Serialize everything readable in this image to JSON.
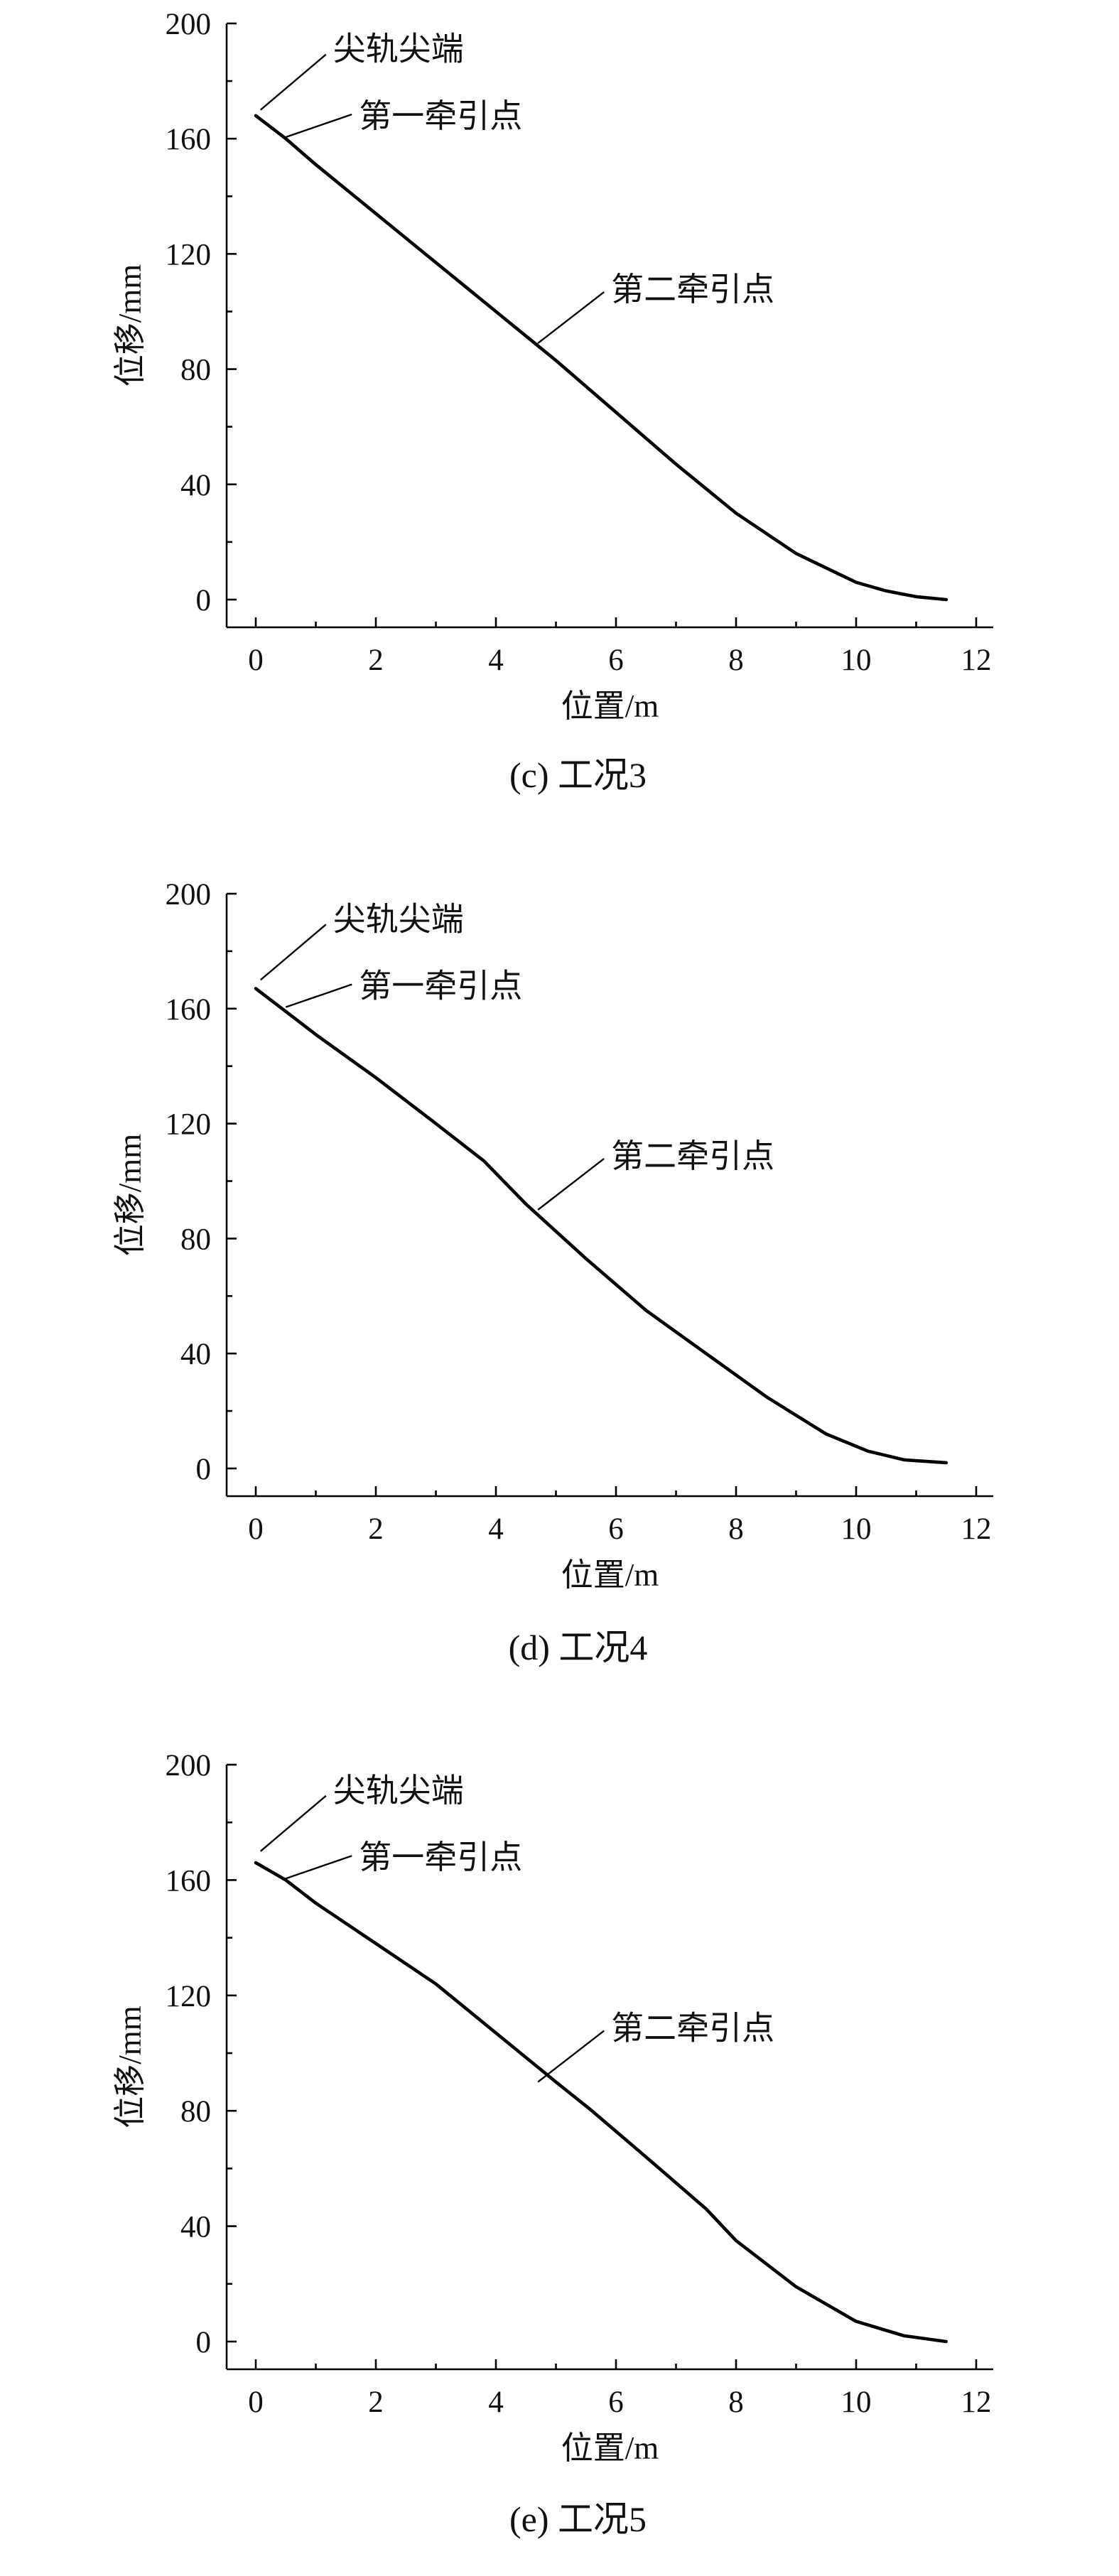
{
  "chart_data": [
    {
      "type": "line",
      "caption": "(c) 工况3",
      "xlabel": "位置/m",
      "ylabel": "位移/mm",
      "xlim": [
        0,
        12
      ],
      "ylim": [
        0,
        200
      ],
      "xticks": [
        0,
        2,
        4,
        6,
        8,
        10,
        12
      ],
      "yticks": [
        0,
        40,
        80,
        120,
        160,
        200
      ],
      "grid": false,
      "series": [
        {
          "x": [
            0,
            0.5,
            1,
            2,
            3,
            4,
            5,
            6,
            7,
            8,
            9,
            10,
            10.5,
            11,
            11.5
          ],
          "y": [
            168,
            160,
            151,
            134,
            117,
            100,
            83,
            65,
            47,
            30,
            16,
            6,
            3,
            1,
            0
          ]
        }
      ],
      "annotations": [
        {
          "text": "尖轨尖端",
          "x": 0.08,
          "y": 170
        },
        {
          "text": "第一牵引点",
          "x": 0.5,
          "y": 163
        },
        {
          "text": "第二牵引点",
          "x": 4.7,
          "y": 89
        }
      ]
    },
    {
      "type": "line",
      "caption": "(d) 工况4",
      "xlabel": "位置/m",
      "ylabel": "位移/mm",
      "xlim": [
        0,
        12
      ],
      "ylim": [
        0,
        200
      ],
      "xticks": [
        0,
        2,
        4,
        6,
        8,
        10,
        12
      ],
      "yticks": [
        0,
        40,
        80,
        120,
        160,
        200
      ],
      "grid": false,
      "series": [
        {
          "x": [
            0,
            0.5,
            1,
            2,
            3,
            3.8,
            4.5,
            5.5,
            6.5,
            7.5,
            8.5,
            9.5,
            10.2,
            10.8,
            11.5
          ],
          "y": [
            167,
            159,
            151,
            136,
            120,
            107,
            92,
            73,
            55,
            40,
            25,
            12,
            6,
            3,
            2
          ]
        }
      ],
      "annotations": [
        {
          "text": "尖轨尖端",
          "x": 0.08,
          "y": 170
        },
        {
          "text": "第一牵引点",
          "x": 0.5,
          "y": 163
        },
        {
          "text": "第二牵引点",
          "x": 4.7,
          "y": 90
        }
      ]
    },
    {
      "type": "line",
      "caption": "(e) 工况5",
      "xlabel": "位置/m",
      "ylabel": "位移/mm",
      "xlim": [
        0,
        12
      ],
      "ylim": [
        0,
        200
      ],
      "xticks": [
        0,
        2,
        4,
        6,
        8,
        10,
        12
      ],
      "yticks": [
        0,
        40,
        80,
        120,
        160,
        200
      ],
      "grid": false,
      "series": [
        {
          "x": [
            0,
            0.5,
            1,
            2,
            3,
            4,
            5,
            5.6,
            6.5,
            7.5,
            8,
            9,
            10,
            10.8,
            11.5
          ],
          "y": [
            166,
            160,
            152,
            138,
            124,
            107,
            90,
            80,
            64,
            46,
            35,
            19,
            7,
            2,
            0
          ]
        }
      ],
      "annotations": [
        {
          "text": "尖轨尖端",
          "x": 0.08,
          "y": 170
        },
        {
          "text": "第一牵引点",
          "x": 0.5,
          "y": 163
        },
        {
          "text": "第二牵引点",
          "x": 4.7,
          "y": 90
        }
      ]
    }
  ]
}
